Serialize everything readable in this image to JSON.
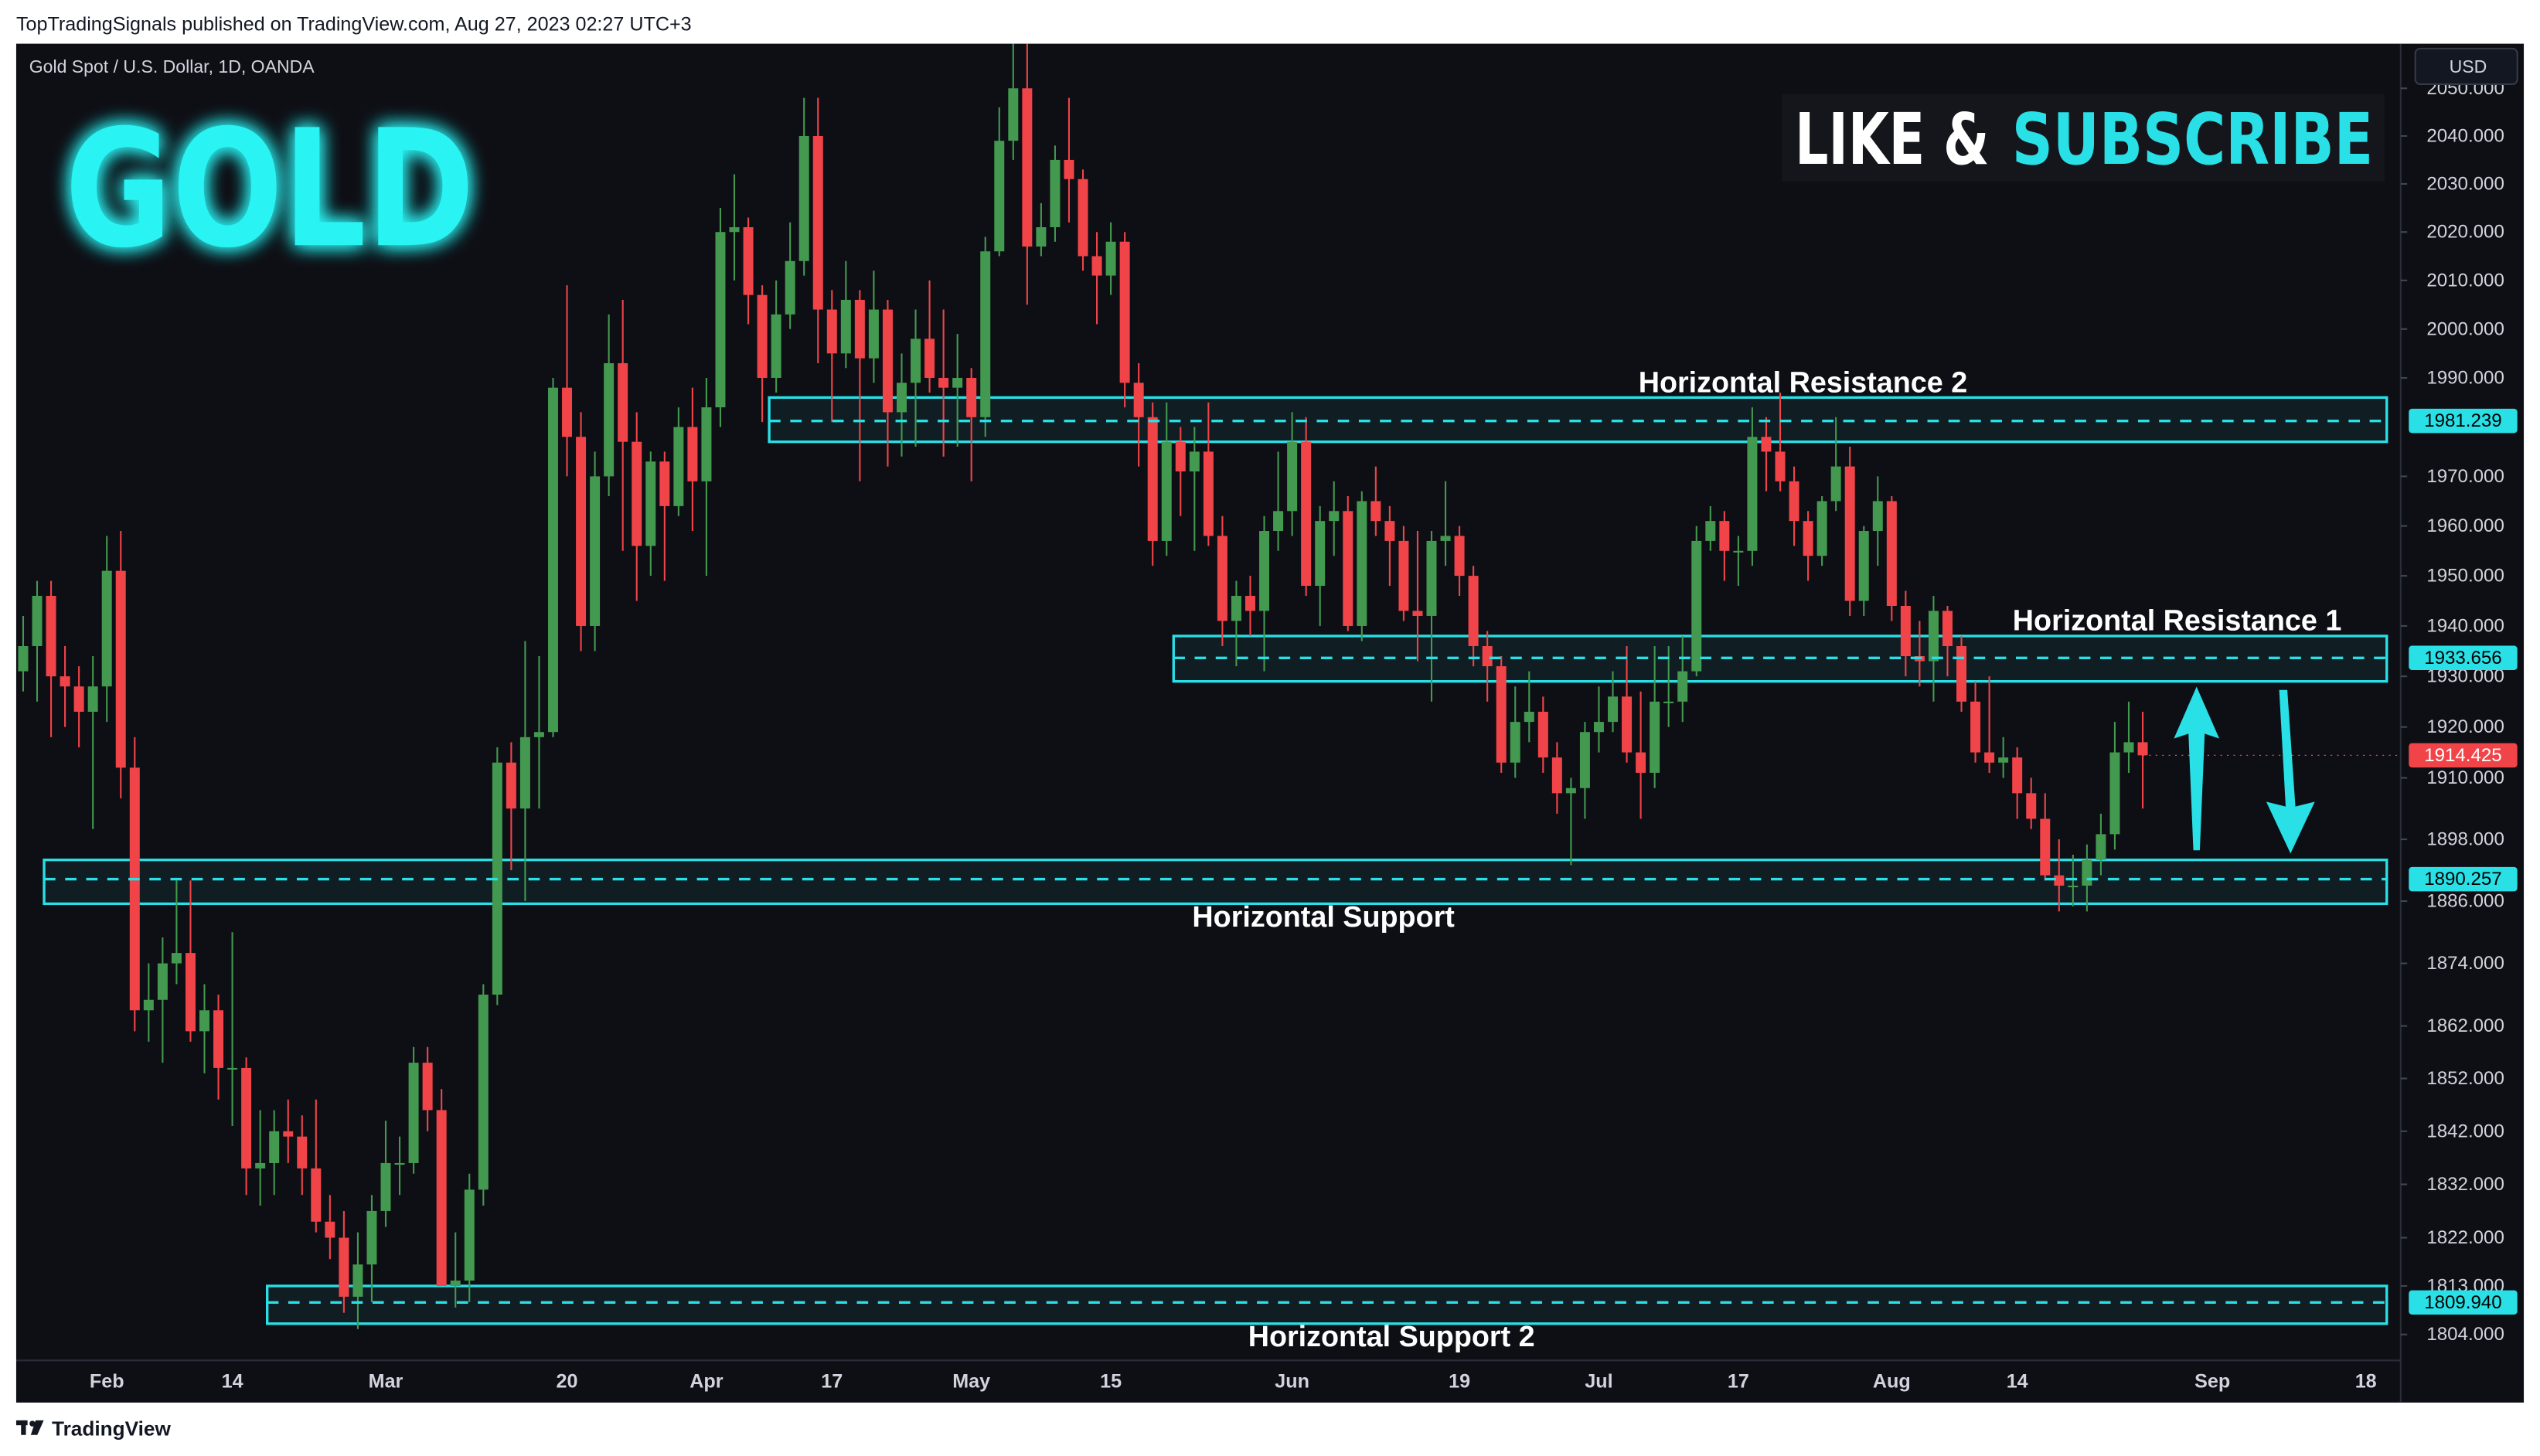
{
  "header": {
    "text": "TopTradingSignals published on TradingView.com, Aug 27, 2023 02:27 UTC+3",
    "brand": "TradingView"
  },
  "chart_data": {
    "type": "candlestick",
    "title": "GOLD",
    "subtitle": "Gold Spot / U.S. Dollar, 1D, OANDA",
    "annotations": [
      "LIKE &",
      "SUBSCRIBE"
    ],
    "currency": "USD",
    "log_scale": true,
    "up_color": "#43994f",
    "down_color": "#f04449",
    "level_color": "#28e0e6",
    "title_color": "#29f3f3",
    "ylim": [
      1799.2,
      2059.4
    ],
    "yticks": [
      {
        "value": 2050,
        "label": "2050.000"
      },
      {
        "value": 2040,
        "label": "2040.000"
      },
      {
        "value": 2030,
        "label": "2030.000"
      },
      {
        "value": 2020,
        "label": "2020.000"
      },
      {
        "value": 2010,
        "label": "2010.000"
      },
      {
        "value": 2000,
        "label": "2000.000"
      },
      {
        "value": 1990,
        "label": "1990.000"
      },
      {
        "value": 1970,
        "label": "1970.000"
      },
      {
        "value": 1960,
        "label": "1960.000"
      },
      {
        "value": 1950,
        "label": "1950.000"
      },
      {
        "value": 1940,
        "label": "1940.000"
      },
      {
        "value": 1930,
        "label": "1930.000"
      },
      {
        "value": 1920,
        "label": "1920.000"
      },
      {
        "value": 1910,
        "label": "1910.000"
      },
      {
        "value": 1898,
        "label": "1898.000"
      },
      {
        "value": 1886,
        "label": "1886.000"
      },
      {
        "value": 1874,
        "label": "1874.000"
      },
      {
        "value": 1862,
        "label": "1862.000"
      },
      {
        "value": 1852,
        "label": "1852.000"
      },
      {
        "value": 1842,
        "label": "1842.000"
      },
      {
        "value": 1832,
        "label": "1832.000"
      },
      {
        "value": 1822,
        "label": "1822.000"
      },
      {
        "value": 1813,
        "label": "1813.000"
      },
      {
        "value": 1804,
        "label": "1804.000"
      }
    ],
    "categories": [
      null,
      null,
      null,
      null,
      null,
      null,
      "Feb",
      null,
      null,
      null,
      null,
      null,
      null,
      null,
      null,
      "14",
      null,
      null,
      null,
      null,
      null,
      null,
      null,
      null,
      null,
      null,
      "Mar",
      null,
      null,
      null,
      null,
      null,
      null,
      null,
      null,
      null,
      null,
      null,
      null,
      "20",
      null,
      null,
      null,
      null,
      null,
      null,
      null,
      null,
      null,
      "Apr",
      null,
      null,
      null,
      null,
      null,
      null,
      null,
      null,
      "17",
      null,
      null,
      null,
      null,
      null,
      null,
      null,
      null,
      null,
      "May",
      null,
      null,
      null,
      null,
      null,
      null,
      null,
      null,
      null,
      "15",
      null,
      null,
      null,
      null,
      null,
      null,
      null,
      null,
      null,
      null,
      null,
      null,
      "Jun",
      null,
      null,
      null,
      null,
      null,
      null,
      null,
      null,
      null,
      null,
      null,
      "19",
      null,
      null,
      null,
      null,
      null,
      null,
      null,
      null,
      null,
      "Jul",
      null,
      null,
      null,
      null,
      null,
      null,
      null,
      null,
      null,
      "17",
      null,
      null,
      null,
      null,
      null,
      null,
      null,
      null,
      null,
      null,
      "Aug",
      null,
      null,
      null,
      null,
      null,
      null,
      null,
      null,
      "14",
      null,
      null,
      null,
      null,
      null,
      null,
      null,
      null,
      null,
      null,
      null,
      null,
      null,
      "Sep",
      null,
      null,
      null,
      null,
      null,
      null,
      null,
      null,
      null,
      null,
      "18",
      null,
      null
    ],
    "ohlc": [
      [
        1931,
        1942,
        1927,
        1936
      ],
      [
        1936,
        1949,
        1925,
        1946
      ],
      [
        1946,
        1949,
        1918,
        1930
      ],
      [
        1930,
        1936,
        1920,
        1928
      ],
      [
        1928,
        1932,
        1916,
        1923
      ],
      [
        1923,
        1934,
        1900,
        1928
      ],
      [
        1928,
        1958,
        1921,
        1951
      ],
      [
        1951,
        1959,
        1906,
        1912
      ],
      [
        1912,
        1918,
        1861,
        1865
      ],
      [
        1865,
        1874,
        1859,
        1867
      ],
      [
        1867,
        1879,
        1855,
        1874
      ],
      [
        1874,
        1890,
        1870,
        1876
      ],
      [
        1876,
        1890,
        1859,
        1861
      ],
      [
        1861,
        1870,
        1853,
        1865
      ],
      [
        1865,
        1868,
        1848,
        1854
      ],
      [
        1854,
        1880,
        1843,
        1854
      ],
      [
        1854,
        1856,
        1830,
        1835
      ],
      [
        1835,
        1846,
        1828,
        1836
      ],
      [
        1836,
        1846,
        1830,
        1842
      ],
      [
        1842,
        1848,
        1836,
        1841
      ],
      [
        1841,
        1845,
        1830,
        1835
      ],
      [
        1835,
        1848,
        1823,
        1825
      ],
      [
        1825,
        1830,
        1818,
        1822
      ],
      [
        1822,
        1827,
        1808,
        1811
      ],
      [
        1811,
        1823,
        1805,
        1817
      ],
      [
        1817,
        1830,
        1810,
        1827
      ],
      [
        1827,
        1844,
        1824,
        1836
      ],
      [
        1836,
        1841,
        1830,
        1836
      ],
      [
        1836,
        1858,
        1834,
        1855
      ],
      [
        1855,
        1858,
        1842,
        1846
      ],
      [
        1846,
        1850,
        1813,
        1813
      ],
      [
        1813,
        1823,
        1809,
        1814
      ],
      [
        1814,
        1834,
        1810,
        1831
      ],
      [
        1831,
        1870,
        1828,
        1868
      ],
      [
        1868,
        1916,
        1866,
        1913
      ],
      [
        1913,
        1917,
        1892,
        1904
      ],
      [
        1904,
        1937,
        1886,
        1918
      ],
      [
        1918,
        1934,
        1904,
        1919
      ],
      [
        1919,
        1990,
        1918,
        1988
      ],
      [
        1988,
        2009,
        1970,
        1978
      ],
      [
        1978,
        1983,
        1935,
        1940
      ],
      [
        1940,
        1975,
        1935,
        1970
      ],
      [
        1970,
        2003,
        1966,
        1993
      ],
      [
        1993,
        2006,
        1955,
        1977
      ],
      [
        1977,
        1983,
        1945,
        1956
      ],
      [
        1956,
        1975,
        1950,
        1973
      ],
      [
        1973,
        1975,
        1949,
        1964
      ],
      [
        1964,
        1984,
        1962,
        1980
      ],
      [
        1980,
        1988,
        1959,
        1969
      ],
      [
        1969,
        1990,
        1950,
        1984
      ],
      [
        1984,
        2025,
        1980,
        2020
      ],
      [
        2020,
        2032,
        2010,
        2021
      ],
      [
        2021,
        2023,
        2001,
        2007
      ],
      [
        2007,
        2009,
        1981,
        1990
      ],
      [
        1990,
        2010,
        1987,
        2003
      ],
      [
        2003,
        2022,
        2000,
        2014
      ],
      [
        2014,
        2048,
        2011,
        2040
      ],
      [
        2040,
        2048,
        1993,
        2004
      ],
      [
        2004,
        2008,
        1981,
        1995
      ],
      [
        1995,
        2014,
        1992,
        2006
      ],
      [
        2006,
        2008,
        1969,
        1994
      ],
      [
        1994,
        2012,
        1989,
        2004
      ],
      [
        2004,
        2006,
        1972,
        1983
      ],
      [
        1983,
        1995,
        1974,
        1989
      ],
      [
        1989,
        2004,
        1976,
        1998
      ],
      [
        1998,
        2010,
        1987,
        1990
      ],
      [
        1990,
        2004,
        1974,
        1988
      ],
      [
        1988,
        1999,
        1976,
        1990
      ],
      [
        1990,
        1992,
        1969,
        1982
      ],
      [
        1982,
        2019,
        1978,
        2016
      ],
      [
        2016,
        2046,
        2015,
        2039
      ],
      [
        2039,
        2072,
        2035,
        2050
      ],
      [
        2050,
        2062,
        2005,
        2017
      ],
      [
        2017,
        2026,
        2015,
        2021
      ],
      [
        2021,
        2038,
        2018,
        2035
      ],
      [
        2035,
        2048,
        2022,
        2031
      ],
      [
        2031,
        2033,
        2012,
        2015
      ],
      [
        2015,
        2020,
        2001,
        2011
      ],
      [
        2011,
        2022,
        2007,
        2018
      ],
      [
        2018,
        2020,
        1984,
        1989
      ],
      [
        1989,
        1993,
        1972,
        1982
      ],
      [
        1982,
        1985,
        1952,
        1957
      ],
      [
        1957,
        1985,
        1954,
        1977
      ],
      [
        1977,
        1980,
        1962,
        1971
      ],
      [
        1971,
        1980,
        1955,
        1975
      ],
      [
        1975,
        1985,
        1956,
        1958
      ],
      [
        1958,
        1962,
        1936,
        1941
      ],
      [
        1941,
        1949,
        1932,
        1946
      ],
      [
        1946,
        1950,
        1938,
        1943
      ],
      [
        1943,
        1962,
        1931,
        1959
      ],
      [
        1959,
        1975,
        1955,
        1963
      ],
      [
        1963,
        1983,
        1958,
        1977
      ],
      [
        1977,
        1982,
        1946,
        1948
      ],
      [
        1948,
        1964,
        1940,
        1961
      ],
      [
        1961,
        1969,
        1954,
        1963
      ],
      [
        1963,
        1966,
        1939,
        1940
      ],
      [
        1940,
        1967,
        1937,
        1965
      ],
      [
        1965,
        1972,
        1958,
        1961
      ],
      [
        1961,
        1964,
        1948,
        1957
      ],
      [
        1957,
        1960,
        1941,
        1943
      ],
      [
        1943,
        1959,
        1933,
        1942
      ],
      [
        1942,
        1959,
        1925,
        1957
      ],
      [
        1957,
        1969,
        1952,
        1958
      ],
      [
        1958,
        1960,
        1946,
        1950
      ],
      [
        1950,
        1952,
        1932,
        1936
      ],
      [
        1936,
        1939,
        1925,
        1932
      ],
      [
        1932,
        1934,
        1911,
        1913
      ],
      [
        1913,
        1928,
        1910,
        1921
      ],
      [
        1921,
        1931,
        1917,
        1923
      ],
      [
        1923,
        1926,
        1911,
        1914
      ],
      [
        1914,
        1917,
        1903,
        1907
      ],
      [
        1907,
        1910,
        1893,
        1908
      ],
      [
        1908,
        1921,
        1902,
        1919
      ],
      [
        1919,
        1928,
        1915,
        1921
      ],
      [
        1921,
        1931,
        1919,
        1926
      ],
      [
        1926,
        1936,
        1913,
        1915
      ],
      [
        1915,
        1927,
        1902,
        1911
      ],
      [
        1911,
        1936,
        1908,
        1925
      ],
      [
        1925,
        1936,
        1920,
        1925
      ],
      [
        1925,
        1938,
        1921,
        1931
      ],
      [
        1931,
        1960,
        1930,
        1957
      ],
      [
        1957,
        1964,
        1955,
        1961
      ],
      [
        1961,
        1963,
        1949,
        1955
      ],
      [
        1955,
        1958,
        1948,
        1955
      ],
      [
        1955,
        1984,
        1952,
        1978
      ],
      [
        1978,
        1982,
        1967,
        1975
      ],
      [
        1975,
        1987,
        1967,
        1969
      ],
      [
        1969,
        1972,
        1956,
        1961
      ],
      [
        1961,
        1963,
        1949,
        1954
      ],
      [
        1954,
        1966,
        1952,
        1965
      ],
      [
        1965,
        1982,
        1963,
        1972
      ],
      [
        1972,
        1976,
        1942,
        1945
      ],
      [
        1945,
        1960,
        1942,
        1959
      ],
      [
        1959,
        1970,
        1952,
        1965
      ],
      [
        1965,
        1966,
        1941,
        1944
      ],
      [
        1944,
        1947,
        1930,
        1934
      ],
      [
        1934,
        1941,
        1928,
        1933
      ],
      [
        1933,
        1946,
        1925,
        1943
      ],
      [
        1943,
        1944,
        1930,
        1936
      ],
      [
        1936,
        1938,
        1923,
        1925
      ],
      [
        1925,
        1929,
        1913,
        1915
      ],
      [
        1915,
        1930,
        1911,
        1913
      ],
      [
        1913,
        1918,
        1910,
        1914
      ],
      [
        1914,
        1916,
        1902,
        1907
      ],
      [
        1907,
        1910,
        1900,
        1902
      ],
      [
        1902,
        1907,
        1890,
        1891
      ],
      [
        1891,
        1898,
        1884,
        1889
      ],
      [
        1889,
        1895,
        1885,
        1889
      ],
      [
        1889,
        1897,
        1884,
        1894
      ],
      [
        1894,
        1903,
        1891,
        1899
      ],
      [
        1899,
        1921,
        1896,
        1915
      ],
      [
        1915,
        1925,
        1911,
        1917
      ],
      [
        1917,
        1923,
        1904,
        1914.425
      ],
      null,
      null,
      null,
      null,
      null,
      null,
      null,
      null,
      null,
      null,
      null,
      null,
      null,
      null,
      null,
      null,
      null,
      null
    ],
    "levels": [
      {
        "name": "Horizontal Resistance 2",
        "price": 1981.239,
        "zone": [
          1977,
          1986
        ]
      },
      {
        "name": "Horizontal Resistance 1",
        "price": 1933.656,
        "zone": [
          1929,
          1938
        ]
      },
      {
        "name": "Horizontal Support",
        "price": 1890.257,
        "zone": [
          1885.5,
          1894
        ]
      },
      {
        "name": "Horizontal Support 2",
        "price": {
          "value": 1809.94,
          "label": "1809.940"
        },
        "zone": [
          1806,
          1813
        ]
      }
    ]
  }
}
